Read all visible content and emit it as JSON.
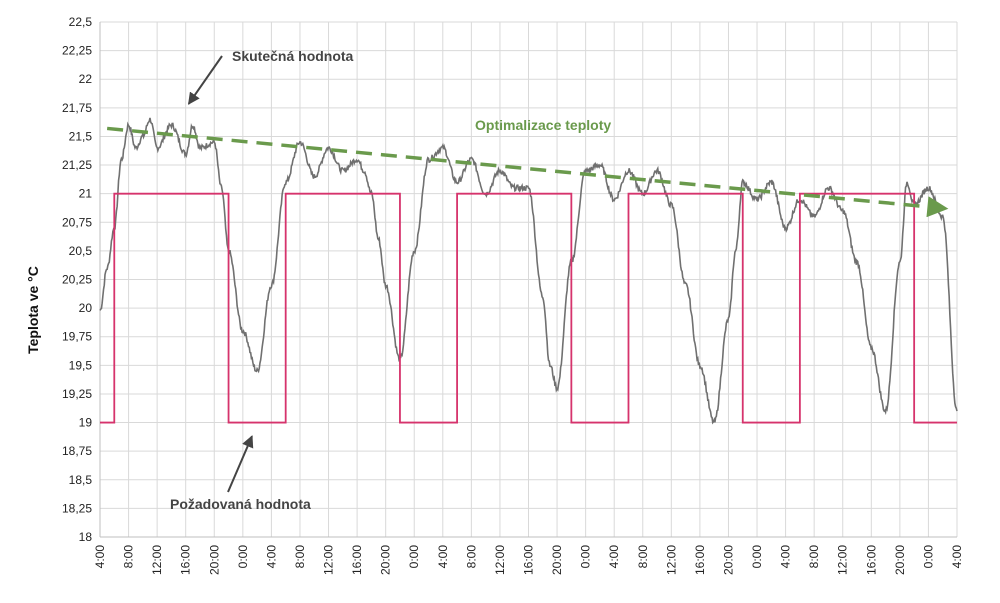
{
  "chart_data": {
    "type": "line",
    "title": "",
    "ylabel": "Teplota ve °C",
    "xlabel": "",
    "ylim": [
      18,
      22.5
    ],
    "y_ticks": [
      "22,5",
      "22,25",
      "22",
      "21,75",
      "21,5",
      "21,25",
      "21",
      "20,75",
      "20,5",
      "20,25",
      "20",
      "19,75",
      "19,5",
      "19,25",
      "19",
      "18,75",
      "18,5",
      "18,25",
      "18"
    ],
    "x_ticks": [
      "4:00",
      "8:00",
      "12:00",
      "16:00",
      "20:00",
      "0:00",
      "4:00",
      "8:00",
      "12:00",
      "16:00",
      "20:00",
      "0:00",
      "4:00",
      "8:00",
      "12:00",
      "16:00",
      "20:00",
      "0:00",
      "4:00",
      "8:00",
      "12:00",
      "16:00",
      "20:00",
      "0:00",
      "4:00",
      "8:00",
      "12:00",
      "16:00",
      "20:00",
      "0:00",
      "4:00"
    ],
    "grid": true,
    "colors": {
      "actual": "#707070",
      "setpoint": "#d6336c",
      "trend": "#6a9a4c",
      "annotation": "#444444"
    },
    "series": [
      {
        "name": "Skutečná hodnota",
        "x_hours": [
          0,
          1,
          2,
          3,
          4,
          5,
          6,
          7,
          8,
          10,
          12,
          13,
          14,
          16,
          17,
          18,
          20,
          22,
          24,
          26,
          28,
          30,
          32,
          34,
          36,
          37,
          38,
          39,
          40,
          42,
          44,
          46,
          48,
          50,
          52,
          54,
          56,
          58,
          60,
          62,
          63,
          64,
          66,
          68,
          70,
          72,
          74,
          76,
          78,
          80,
          82,
          84,
          86,
          88,
          89,
          90,
          92,
          94,
          96,
          98,
          100,
          102,
          104,
          106,
          108,
          110,
          112,
          113,
          114,
          116,
          118,
          120
        ],
        "values": [
          19.98,
          20.35,
          20.7,
          21.3,
          21.6,
          21.4,
          21.5,
          21.65,
          21.4,
          21.6,
          21.35,
          21.6,
          21.4,
          21.45,
          21.05,
          20.5,
          19.8,
          19.45,
          20.2,
          21.1,
          21.45,
          21.15,
          21.4,
          21.2,
          21.3,
          21.2,
          21.0,
          20.6,
          20.2,
          19.55,
          20.5,
          21.3,
          21.4,
          21.1,
          21.3,
          21.0,
          21.2,
          21.05,
          21.05,
          20.1,
          19.5,
          19.3,
          20.4,
          21.2,
          21.25,
          20.95,
          21.2,
          21.0,
          21.2,
          20.9,
          20.2,
          19.5,
          19.0,
          19.9,
          20.5,
          21.1,
          20.95,
          21.1,
          20.7,
          20.95,
          20.8,
          21.05,
          20.85,
          20.4,
          19.65,
          19.1,
          20.4,
          21.1,
          20.9,
          21.05,
          20.8,
          19.1
        ]
      },
      {
        "name": "Požadovaná hodnota",
        "x_hours": [
          0,
          2,
          2,
          18,
          18,
          26,
          26,
          42,
          42,
          50,
          50,
          66,
          66,
          74,
          74,
          90,
          90,
          98,
          98,
          114,
          114,
          120
        ],
        "values": [
          19,
          19,
          21,
          21,
          19,
          19,
          21,
          21,
          19,
          19,
          21,
          21,
          19,
          19,
          21,
          21,
          19,
          19,
          21,
          21,
          19,
          19
        ]
      },
      {
        "name": "Optimalizace teploty",
        "style": "dashed-arrow",
        "x_hours": [
          1,
          118.5
        ],
        "values": [
          21.57,
          20.87
        ]
      }
    ],
    "annotations": [
      {
        "text": "Skutečná hodnota",
        "arrow_to_hour": 12,
        "arrow_to_value": 21.75
      },
      {
        "text": "Požadovaná hodnota",
        "arrow_to_hour": 21,
        "arrow_to_value": 18.95
      },
      {
        "text": "Optimalizace teploty",
        "color": "#6a9a4c"
      }
    ]
  }
}
